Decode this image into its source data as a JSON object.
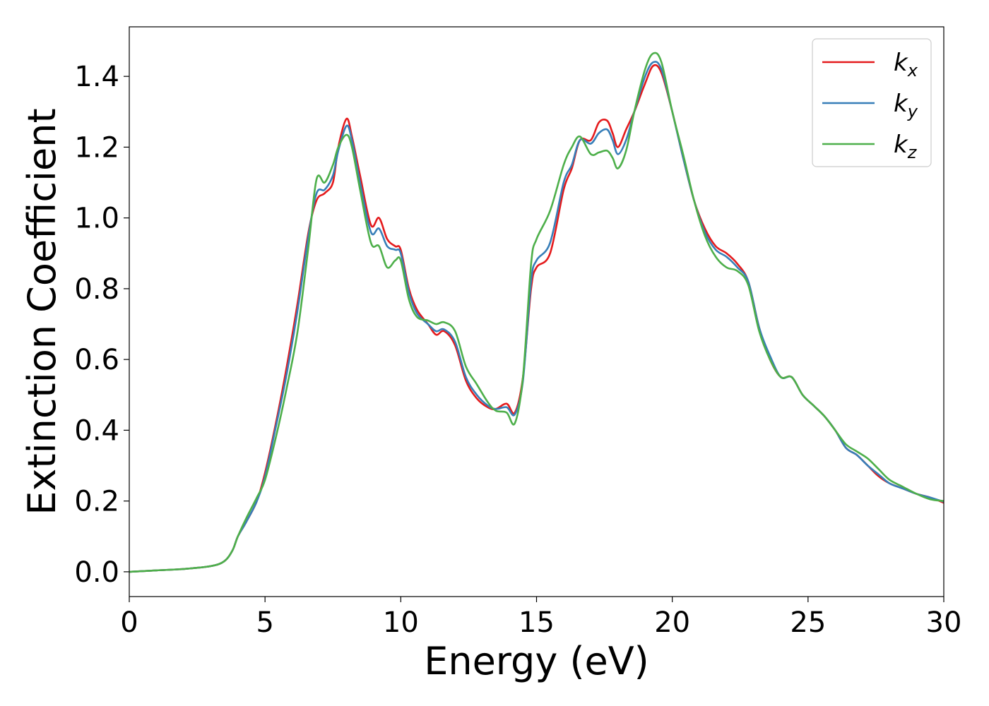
{
  "chart_data": {
    "type": "line",
    "title": "",
    "xlabel": "Energy (eV)",
    "ylabel": "Extinction Coefficient",
    "xlim": [
      0,
      30
    ],
    "ylim": [
      -0.07,
      1.54
    ],
    "xticks": [
      0,
      5,
      10,
      15,
      20,
      25,
      30
    ],
    "yticks": [
      0.0,
      0.2,
      0.4,
      0.6,
      0.8,
      1.0,
      1.2,
      1.4
    ],
    "grid": false,
    "legend_position": "top-right",
    "colors": {
      "kx": "#e41a1c",
      "ky": "#377eb8",
      "kz": "#4daf4a"
    },
    "series": [
      {
        "name": "k_x",
        "base": "k",
        "sub": "x",
        "color": "#e41a1c",
        "x": [
          0,
          1,
          2,
          3,
          3.5,
          3.8,
          4.0,
          4.3,
          4.7,
          5.0,
          5.4,
          5.8,
          6.2,
          6.6,
          6.9,
          7.2,
          7.5,
          7.7,
          8.0,
          8.2,
          8.5,
          8.9,
          9.2,
          9.5,
          9.8,
          10.0,
          10.3,
          10.6,
          11.0,
          11.3,
          11.6,
          12.0,
          12.4,
          12.8,
          13.2,
          13.5,
          13.9,
          14.2,
          14.5,
          14.8,
          15.0,
          15.5,
          16.0,
          16.3,
          16.6,
          17.0,
          17.3,
          17.6,
          17.8,
          18.0,
          18.3,
          18.6,
          19.0,
          19.3,
          19.6,
          20.0,
          20.4,
          20.8,
          21.2,
          21.6,
          22.0,
          22.4,
          22.8,
          23.2,
          23.6,
          24.0,
          24.4,
          24.8,
          25.2,
          25.6,
          26.0,
          26.4,
          26.8,
          27.2,
          27.6,
          28.0,
          28.5,
          29.0,
          29.5,
          30.0
        ],
        "y": [
          0.0,
          0.004,
          0.008,
          0.016,
          0.03,
          0.06,
          0.1,
          0.14,
          0.2,
          0.28,
          0.42,
          0.58,
          0.76,
          0.96,
          1.05,
          1.07,
          1.1,
          1.2,
          1.28,
          1.23,
          1.12,
          0.98,
          1.0,
          0.94,
          0.92,
          0.91,
          0.8,
          0.74,
          0.7,
          0.67,
          0.68,
          0.64,
          0.54,
          0.49,
          0.465,
          0.46,
          0.475,
          0.45,
          0.55,
          0.8,
          0.86,
          0.9,
          1.08,
          1.14,
          1.22,
          1.22,
          1.27,
          1.275,
          1.24,
          1.2,
          1.25,
          1.3,
          1.38,
          1.43,
          1.41,
          1.3,
          1.17,
          1.05,
          0.97,
          0.92,
          0.9,
          0.87,
          0.82,
          0.69,
          0.6,
          0.55,
          0.55,
          0.5,
          0.47,
          0.44,
          0.4,
          0.35,
          0.33,
          0.3,
          0.27,
          0.25,
          0.235,
          0.22,
          0.21,
          0.195
        ]
      },
      {
        "name": "k_y",
        "base": "k",
        "sub": "y",
        "color": "#377eb8",
        "x": [
          0,
          1,
          2,
          3,
          3.5,
          3.8,
          4.0,
          4.3,
          4.7,
          5.0,
          5.4,
          5.8,
          6.2,
          6.6,
          6.9,
          7.2,
          7.5,
          7.7,
          8.0,
          8.2,
          8.5,
          8.9,
          9.2,
          9.5,
          9.8,
          10.0,
          10.3,
          10.6,
          11.0,
          11.3,
          11.6,
          12.0,
          12.4,
          12.8,
          13.2,
          13.5,
          13.9,
          14.2,
          14.5,
          14.8,
          15.0,
          15.5,
          16.0,
          16.3,
          16.6,
          17.0,
          17.3,
          17.6,
          17.8,
          18.0,
          18.3,
          18.6,
          19.0,
          19.3,
          19.6,
          20.0,
          20.4,
          20.8,
          21.2,
          21.6,
          22.0,
          22.4,
          22.8,
          23.2,
          23.6,
          24.0,
          24.4,
          24.8,
          25.2,
          25.6,
          26.0,
          26.4,
          26.8,
          27.2,
          27.6,
          28.0,
          28.5,
          29.0,
          29.5,
          30.0
        ],
        "y": [
          0.0,
          0.004,
          0.008,
          0.016,
          0.03,
          0.06,
          0.1,
          0.14,
          0.2,
          0.27,
          0.41,
          0.56,
          0.74,
          0.95,
          1.07,
          1.08,
          1.12,
          1.19,
          1.26,
          1.22,
          1.1,
          0.96,
          0.97,
          0.92,
          0.91,
          0.9,
          0.79,
          0.73,
          0.7,
          0.68,
          0.685,
          0.65,
          0.55,
          0.5,
          0.47,
          0.46,
          0.465,
          0.445,
          0.54,
          0.82,
          0.88,
          0.93,
          1.1,
          1.15,
          1.22,
          1.21,
          1.24,
          1.25,
          1.22,
          1.18,
          1.22,
          1.3,
          1.4,
          1.44,
          1.42,
          1.3,
          1.17,
          1.05,
          0.96,
          0.91,
          0.89,
          0.86,
          0.82,
          0.69,
          0.61,
          0.55,
          0.55,
          0.5,
          0.47,
          0.44,
          0.4,
          0.35,
          0.33,
          0.3,
          0.275,
          0.25,
          0.235,
          0.22,
          0.21,
          0.198
        ]
      },
      {
        "name": "k_z",
        "base": "k",
        "sub": "z",
        "color": "#4daf4a",
        "x": [
          0,
          1,
          2,
          3,
          3.5,
          3.8,
          4.0,
          4.3,
          4.7,
          5.0,
          5.4,
          5.8,
          6.2,
          6.6,
          6.9,
          7.2,
          7.5,
          7.7,
          8.0,
          8.2,
          8.5,
          8.9,
          9.2,
          9.5,
          9.8,
          10.0,
          10.3,
          10.6,
          11.0,
          11.3,
          11.6,
          12.0,
          12.4,
          12.8,
          13.2,
          13.5,
          13.9,
          14.2,
          14.5,
          14.8,
          15.0,
          15.5,
          16.0,
          16.3,
          16.6,
          17.0,
          17.3,
          17.6,
          17.8,
          18.0,
          18.3,
          18.6,
          19.0,
          19.3,
          19.6,
          20.0,
          20.4,
          20.8,
          21.2,
          21.6,
          22.0,
          22.4,
          22.8,
          23.2,
          23.6,
          24.0,
          24.4,
          24.8,
          25.2,
          25.6,
          26.0,
          26.4,
          26.8,
          27.2,
          27.6,
          28.0,
          28.5,
          29.0,
          29.5,
          30.0
        ],
        "y": [
          0.0,
          0.004,
          0.008,
          0.016,
          0.03,
          0.06,
          0.1,
          0.15,
          0.21,
          0.26,
          0.38,
          0.52,
          0.68,
          0.92,
          1.11,
          1.1,
          1.15,
          1.2,
          1.235,
          1.2,
          1.08,
          0.93,
          0.92,
          0.86,
          0.88,
          0.88,
          0.77,
          0.72,
          0.71,
          0.7,
          0.705,
          0.68,
          0.58,
          0.53,
          0.48,
          0.455,
          0.45,
          0.42,
          0.55,
          0.87,
          0.94,
          1.02,
          1.15,
          1.2,
          1.23,
          1.18,
          1.185,
          1.19,
          1.17,
          1.14,
          1.19,
          1.3,
          1.42,
          1.465,
          1.44,
          1.3,
          1.18,
          1.05,
          0.95,
          0.89,
          0.86,
          0.85,
          0.81,
          0.68,
          0.6,
          0.55,
          0.55,
          0.5,
          0.47,
          0.44,
          0.4,
          0.36,
          0.34,
          0.32,
          0.29,
          0.26,
          0.24,
          0.22,
          0.205,
          0.2
        ]
      }
    ]
  }
}
